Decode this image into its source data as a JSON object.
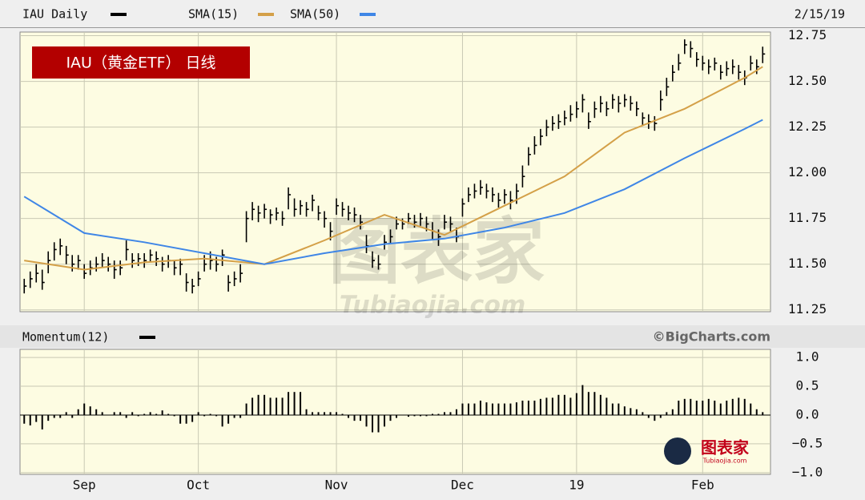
{
  "chart_data": [
    {
      "type": "ohlc",
      "title": "IAU Daily",
      "subtitle": "2/15/19",
      "annotation": "IAU（黄金ETF） 日线",
      "color": "#000000",
      "grid": true,
      "xlim": [
        -0.7,
        124.3
      ],
      "ylim": [
        11.24,
        12.77
      ],
      "yticks": [
        12.75,
        {
          "value": 12.5,
          "label": "12.50"
        },
        12.25,
        {
          "value": 12,
          "label": "12.00"
        },
        11.75,
        {
          "value": 11.5,
          "label": "11.50"
        },
        11.25
      ],
      "xticks": [
        {
          "value": 10,
          "label": "Sep"
        },
        {
          "value": 29,
          "label": "Oct"
        },
        {
          "value": 52,
          "label": "Nov"
        },
        {
          "value": 73,
          "label": "Dec"
        },
        {
          "value": 92,
          "label": "19"
        },
        {
          "value": 113,
          "label": "Feb"
        }
      ],
      "close": [
        11.38,
        11.42,
        11.45,
        11.4,
        11.52,
        11.58,
        11.6,
        11.55,
        11.5,
        11.52,
        11.45,
        11.48,
        11.5,
        11.52,
        11.5,
        11.47,
        11.48,
        11.58,
        11.52,
        11.53,
        11.52,
        11.55,
        11.53,
        11.5,
        11.52,
        11.48,
        11.5,
        11.4,
        11.38,
        11.42,
        11.5,
        11.52,
        11.5,
        11.55,
        11.4,
        11.42,
        11.45,
        11.75,
        11.8,
        11.78,
        11.8,
        11.77,
        11.78,
        11.75,
        11.88,
        11.8,
        11.82,
        11.8,
        11.85,
        11.78,
        11.75,
        11.68,
        11.82,
        11.8,
        11.78,
        11.77,
        11.73,
        11.6,
        11.52,
        11.5,
        11.62,
        11.65,
        11.72,
        11.72,
        11.75,
        11.73,
        11.75,
        11.72,
        11.68,
        11.65,
        11.73,
        11.72,
        11.65,
        11.83,
        11.88,
        11.9,
        11.92,
        11.9,
        11.88,
        11.85,
        11.88,
        11.85,
        11.9,
        11.98,
        12.1,
        12.15,
        12.2,
        12.25,
        12.27,
        12.28,
        12.3,
        12.32,
        12.35,
        12.4,
        12.28,
        12.35,
        12.38,
        12.35,
        12.4,
        12.38,
        12.4,
        12.38,
        12.35,
        12.3,
        12.28,
        12.27,
        12.4,
        12.47,
        12.55,
        12.6,
        12.7,
        12.68,
        12.62,
        12.6,
        12.58,
        12.6,
        12.55,
        12.57,
        12.58,
        12.55,
        12.52,
        12.6,
        12.58,
        12.65
      ],
      "high": [
        11.42,
        11.46,
        11.5,
        11.47,
        11.57,
        11.62,
        11.64,
        11.6,
        11.55,
        11.55,
        11.5,
        11.52,
        11.54,
        11.56,
        11.54,
        11.52,
        11.52,
        11.63,
        11.56,
        11.56,
        11.56,
        11.58,
        11.57,
        11.54,
        11.55,
        11.52,
        11.53,
        11.45,
        11.42,
        11.46,
        11.55,
        11.57,
        11.54,
        11.58,
        11.44,
        11.46,
        11.5,
        11.79,
        11.84,
        11.82,
        11.83,
        11.8,
        11.81,
        11.79,
        11.92,
        11.86,
        11.85,
        11.84,
        11.88,
        11.82,
        11.79,
        11.73,
        11.86,
        11.84,
        11.82,
        11.81,
        11.77,
        11.66,
        11.57,
        11.55,
        11.66,
        11.69,
        11.76,
        11.75,
        11.78,
        11.77,
        11.78,
        11.76,
        11.73,
        11.69,
        11.77,
        11.76,
        11.7,
        11.86,
        11.92,
        11.94,
        11.96,
        11.94,
        11.92,
        11.89,
        11.91,
        11.9,
        11.94,
        12.04,
        12.14,
        12.2,
        12.24,
        12.29,
        12.31,
        12.32,
        12.34,
        12.37,
        12.39,
        12.43,
        12.33,
        12.39,
        12.42,
        12.39,
        12.43,
        12.42,
        12.43,
        12.42,
        12.39,
        12.33,
        12.32,
        12.31,
        12.45,
        12.52,
        12.59,
        12.65,
        12.73,
        12.72,
        12.66,
        12.64,
        12.62,
        12.63,
        12.59,
        12.61,
        12.62,
        12.59,
        12.56,
        12.64,
        12.62,
        12.69
      ],
      "low": [
        11.34,
        11.37,
        11.4,
        11.36,
        11.45,
        11.52,
        11.55,
        11.5,
        11.46,
        11.47,
        11.42,
        11.44,
        11.46,
        11.48,
        11.46,
        11.42,
        11.44,
        11.52,
        11.48,
        11.49,
        11.48,
        11.51,
        11.49,
        11.46,
        11.48,
        11.44,
        11.44,
        11.35,
        11.34,
        11.38,
        11.46,
        11.47,
        11.46,
        11.49,
        11.35,
        11.38,
        11.4,
        11.62,
        11.74,
        11.73,
        11.75,
        11.72,
        11.74,
        11.71,
        11.8,
        11.76,
        11.77,
        11.76,
        11.79,
        11.74,
        11.7,
        11.63,
        11.77,
        11.76,
        11.74,
        11.73,
        11.69,
        11.56,
        11.48,
        11.47,
        11.58,
        11.61,
        11.69,
        11.69,
        11.72,
        11.7,
        11.71,
        11.68,
        11.63,
        11.6,
        11.69,
        11.68,
        11.62,
        11.76,
        11.84,
        11.86,
        11.88,
        11.86,
        11.84,
        11.81,
        11.83,
        11.8,
        11.83,
        11.92,
        12.04,
        12.1,
        12.15,
        12.2,
        12.23,
        12.24,
        12.26,
        12.28,
        12.3,
        12.33,
        12.24,
        12.3,
        12.33,
        12.31,
        12.35,
        12.33,
        12.36,
        12.34,
        12.31,
        12.26,
        12.24,
        12.23,
        12.34,
        12.42,
        12.5,
        12.56,
        12.65,
        12.63,
        12.58,
        12.56,
        12.54,
        12.56,
        12.51,
        12.53,
        12.54,
        12.51,
        12.48,
        12.56,
        12.54,
        12.6
      ],
      "series": [
        {
          "name": "SMA(15)",
          "color": "#d4a048",
          "x": [
            0,
            10,
            20,
            30,
            40,
            50,
            60,
            70,
            80,
            90,
            100,
            110,
            120,
            123
          ],
          "values": [
            11.52,
            11.47,
            11.51,
            11.53,
            11.5,
            11.63,
            11.77,
            11.66,
            11.82,
            11.98,
            12.22,
            12.35,
            12.52,
            12.58
          ]
        },
        {
          "name": "SMA(50)",
          "color": "#3f86e6",
          "x": [
            0,
            10,
            20,
            30,
            40,
            50,
            60,
            70,
            80,
            90,
            100,
            110,
            120,
            123
          ],
          "values": [
            11.87,
            11.67,
            11.62,
            11.56,
            11.5,
            11.56,
            11.61,
            11.64,
            11.7,
            11.78,
            11.91,
            12.08,
            12.24,
            12.29
          ]
        }
      ]
    },
    {
      "type": "bar",
      "title": "Momentum(12)",
      "source": "©BigCharts.com",
      "color": "#000000",
      "grid": true,
      "xlim": [
        -0.7,
        124.3
      ],
      "ylim": [
        -1.03,
        1.14
      ],
      "yticks": [
        {
          "value": 1,
          "label": "1.0"
        },
        {
          "value": 0.5,
          "label": "0.5"
        },
        {
          "value": 0,
          "label": "0.0"
        },
        {
          "value": -0.5,
          "label": "−0.5"
        },
        {
          "value": -1,
          "label": "−1.0"
        }
      ],
      "values": [
        -0.15,
        -0.18,
        -0.12,
        -0.25,
        -0.1,
        -0.05,
        -0.05,
        0.05,
        -0.05,
        0.1,
        0.2,
        0.15,
        0.1,
        0.05,
        0,
        0.05,
        0.05,
        -0.05,
        0.05,
        -0.02,
        0.02,
        0.05,
        0.02,
        0.08,
        0.02,
        -0.02,
        -0.15,
        -0.15,
        -0.12,
        0.05,
        -0.02,
        0.02,
        -0.02,
        -0.2,
        -0.15,
        -0.05,
        -0.05,
        0.2,
        0.3,
        0.35,
        0.35,
        0.3,
        0.3,
        0.3,
        0.4,
        0.4,
        0.4,
        0.1,
        0.05,
        0.05,
        0.05,
        0.05,
        0.05,
        0.02,
        -0.05,
        -0.1,
        -0.1,
        -0.2,
        -0.3,
        -0.3,
        -0.2,
        -0.1,
        -0.05,
        0,
        -0.03,
        -0.02,
        -0.02,
        -0.02,
        0.02,
        0.02,
        0.05,
        0.05,
        0.1,
        0.2,
        0.2,
        0.2,
        0.25,
        0.22,
        0.2,
        0.2,
        0.2,
        0.2,
        0.22,
        0.25,
        0.25,
        0.25,
        0.28,
        0.3,
        0.3,
        0.35,
        0.35,
        0.3,
        0.38,
        0.52,
        0.4,
        0.4,
        0.35,
        0.3,
        0.2,
        0.2,
        0.15,
        0.12,
        0.1,
        0.05,
        -0.05,
        -0.1,
        -0.05,
        0.05,
        0.1,
        0.25,
        0.28,
        0.28,
        0.25,
        0.25,
        0.28,
        0.25,
        0.2,
        0.25,
        0.28,
        0.3,
        0.28,
        0.2,
        0.1,
        0.05
      ]
    }
  ],
  "watermark": {
    "text": "图表家",
    "url": "Tubiaojia.com"
  }
}
